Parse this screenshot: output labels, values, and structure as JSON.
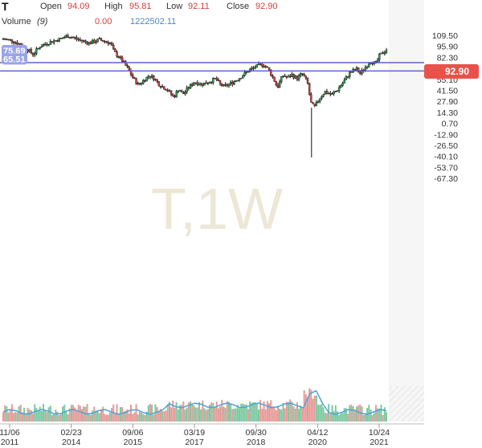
{
  "header": {
    "symbol": "T",
    "open_label": "Open",
    "open_value": "94.09",
    "high_label": "High",
    "high_value": "95.81",
    "low_label": "Low",
    "low_value": "92.11",
    "close_label": "Close",
    "close_value": "92.90",
    "volume_label": "Volume",
    "volume_period": "(9)",
    "volume_change": "0.00",
    "volume_value": "1222502.11"
  },
  "watermark": "T,1W",
  "colors": {
    "up": "#2a9d4f",
    "down": "#d43f3a",
    "candle": "#111111",
    "level_line": "#5a64c8",
    "level_badge": "#9aa3e6",
    "price_badge": "#e8524a",
    "volume_line": "#4ea3d8"
  },
  "chart_data": {
    "type": "candlestick",
    "title": "",
    "ylim": [
      -74,
      120
    ],
    "y_ticks": [
      "109.50",
      "95.90",
      "82.30",
      "68.70",
      "55.10",
      "41.50",
      "27.90",
      "14.30",
      "0.70",
      "-12.90",
      "-26.50",
      "-40.10",
      "-53.70",
      "-67.30"
    ],
    "x_ticks": [
      {
        "top": "11/06",
        "bottom": "2011"
      },
      {
        "top": "02/23",
        "bottom": "2014"
      },
      {
        "top": "09/06",
        "bottom": "2015"
      },
      {
        "top": "03/19",
        "bottom": "2017"
      },
      {
        "top": "09/30",
        "bottom": "2018"
      },
      {
        "top": "04/12",
        "bottom": "2020"
      },
      {
        "top": "10/24",
        "bottom": "2021"
      }
    ],
    "last_price": "92.90",
    "horizontal_levels": [
      {
        "value": 75.69,
        "label": "75.69"
      },
      {
        "value": 65.51,
        "label": "65.51"
      }
    ],
    "series": [
      {
        "values": [
          [
            2011.85,
            105
          ],
          [
            2012.1,
            103
          ],
          [
            2012.4,
            97
          ],
          [
            2012.7,
            86
          ],
          [
            2012.9,
            96
          ],
          [
            2013.1,
            100
          ],
          [
            2013.4,
            104
          ],
          [
            2013.7,
            109
          ],
          [
            2014.0,
            104
          ],
          [
            2014.3,
            100
          ],
          [
            2014.6,
            104
          ],
          [
            2014.9,
            100
          ],
          [
            2015.0,
            89
          ],
          [
            2015.2,
            80
          ],
          [
            2015.4,
            68
          ],
          [
            2015.55,
            56
          ],
          [
            2015.7,
            48
          ],
          [
            2015.9,
            56
          ],
          [
            2016.0,
            60
          ],
          [
            2016.15,
            56
          ],
          [
            2016.3,
            48
          ],
          [
            2016.5,
            43
          ],
          [
            2016.7,
            33
          ],
          [
            2016.85,
            44
          ],
          [
            2016.95,
            36
          ],
          [
            2017.1,
            44
          ],
          [
            2017.3,
            52
          ],
          [
            2017.5,
            49
          ],
          [
            2017.7,
            52
          ],
          [
            2017.9,
            56
          ],
          [
            2018.0,
            49
          ],
          [
            2018.15,
            46
          ],
          [
            2018.4,
            52
          ],
          [
            2018.6,
            58
          ],
          [
            2018.8,
            65
          ],
          [
            2019.0,
            70
          ],
          [
            2019.25,
            74
          ],
          [
            2019.4,
            67
          ],
          [
            2019.55,
            55
          ],
          [
            2019.65,
            45
          ],
          [
            2019.8,
            60
          ],
          [
            2019.95,
            57
          ],
          [
            2020.05,
            61
          ],
          [
            2020.2,
            56
          ],
          [
            2020.35,
            62
          ],
          [
            2020.5,
            52
          ],
          [
            2020.6,
            26
          ],
          [
            2020.7,
            20
          ],
          [
            2020.85,
            32
          ],
          [
            2021.0,
            40
          ],
          [
            2021.2,
            36
          ],
          [
            2021.35,
            42
          ],
          [
            2021.5,
            50
          ],
          [
            2021.7,
            63
          ],
          [
            2021.9,
            68
          ],
          [
            2022.0,
            62
          ],
          [
            2022.15,
            70
          ],
          [
            2022.3,
            78
          ],
          [
            2022.45,
            74
          ],
          [
            2022.55,
            84
          ],
          [
            2022.65,
            88
          ],
          [
            2022.75,
            92
          ]
        ]
      }
    ]
  }
}
